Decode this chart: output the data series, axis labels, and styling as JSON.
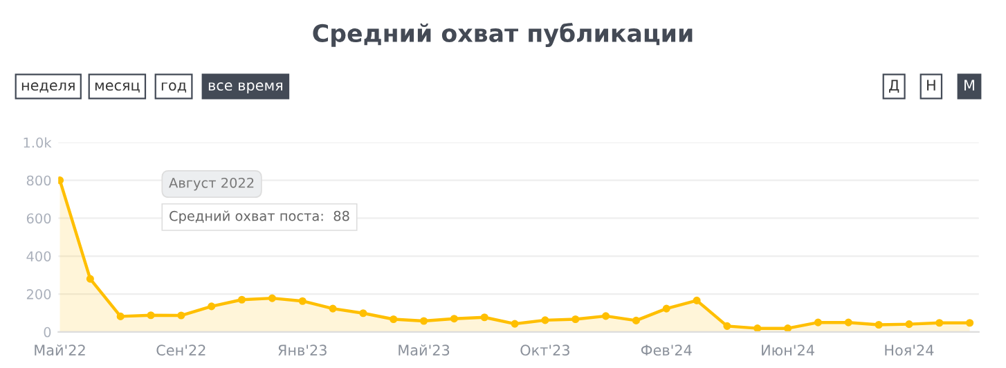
{
  "chart_data": {
    "type": "area",
    "title": "Средний охват публикации",
    "categories": [
      "Май'22",
      null,
      null,
      null,
      "Сен'22",
      null,
      null,
      null,
      "Янв'23",
      null,
      null,
      null,
      "Май'23",
      null,
      null,
      null,
      "Окт'23",
      null,
      null,
      null,
      "Фев'24",
      null,
      null,
      null,
      "Июн'24",
      null,
      null,
      null,
      "Ноя'24",
      null,
      null
    ],
    "series": [
      {
        "color": "#ffbf00",
        "values": [
          800,
          280,
          82,
          88,
          87,
          135,
          170,
          178,
          163,
          123,
          99,
          67,
          58,
          70,
          77,
          43,
          62,
          67,
          84,
          60,
          123,
          166,
          31,
          19,
          19,
          50,
          50,
          38,
          41,
          48,
          48
        ]
      }
    ],
    "ylim": [
      0,
      1000
    ],
    "yticks": [
      0,
      200,
      400,
      600,
      800,
      {
        "value": 1000,
        "label": "1.0k"
      }
    ],
    "grid": "y",
    "marker": "circle",
    "line_style": "solid",
    "annotations": [
      "неделя",
      "месяц",
      "год",
      "все время",
      "Д",
      "Н",
      "М",
      "Август 2022",
      "Средний охват поста:  88"
    ]
  }
}
